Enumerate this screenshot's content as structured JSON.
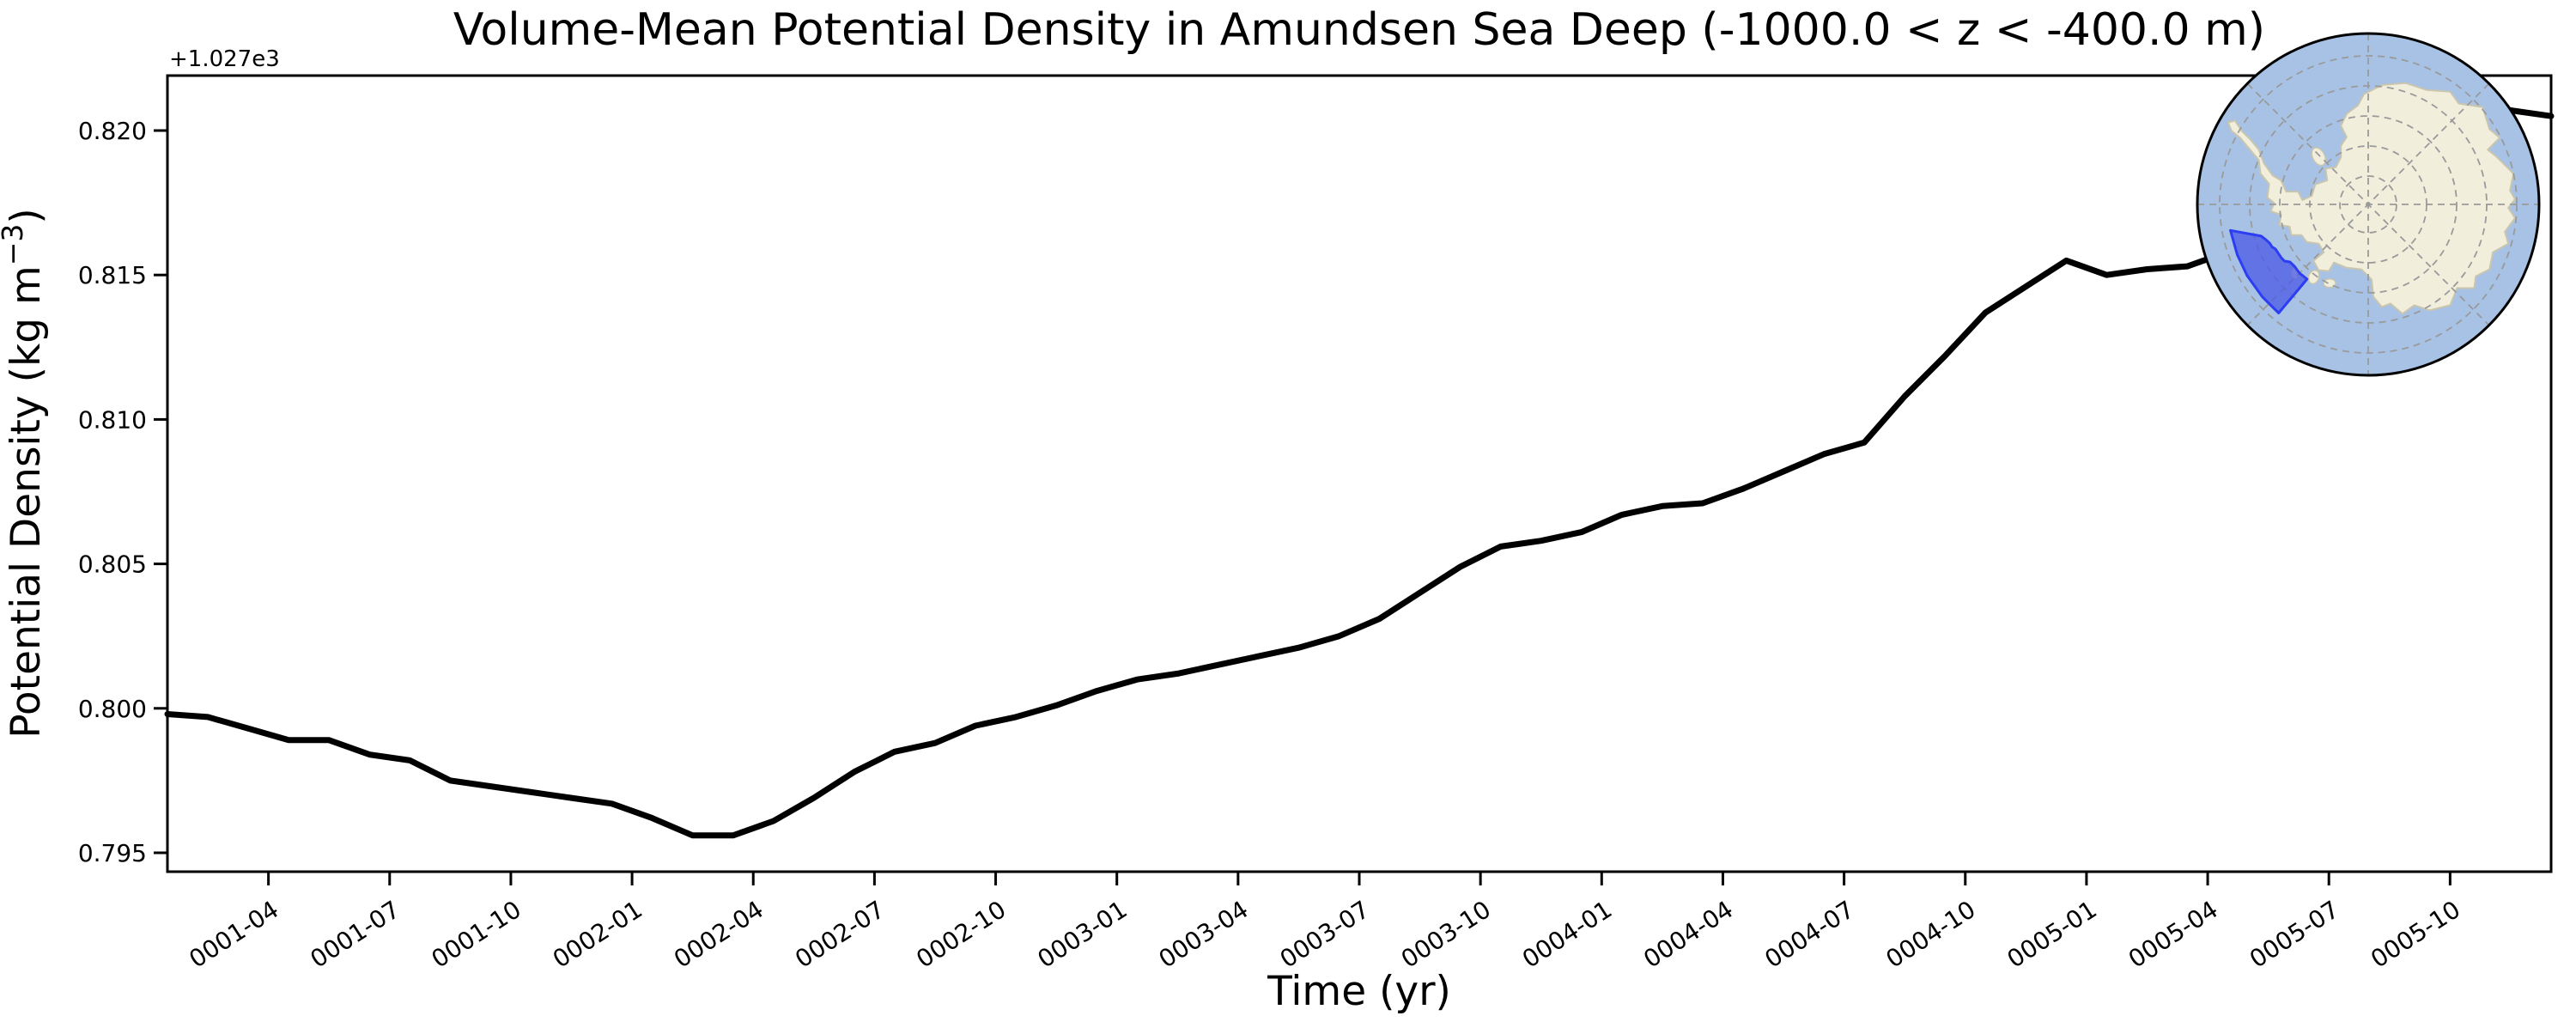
{
  "title": "Volume-Mean Potential Density in Amundsen Sea Deep (-1000.0 < z < -400.0 m)",
  "axes": {
    "xlabel": "Time (yr)",
    "ylabel_prefix": "Potential Density (kg m",
    "ylabel_superscript": "−3",
    "ylabel_close": ")",
    "y_offset_label": "+1.027e3"
  },
  "chart_data": {
    "type": "line",
    "title": "Volume-Mean Potential Density in Amundsen Sea Deep (-1000.0 < z < -400.0 m)",
    "xlabel": "Time (yr)",
    "ylabel": "Potential Density (kg m^-3)",
    "y_offset_notation": "+1.027e3",
    "y_offset_base": 1027,
    "grid": false,
    "legend": "none",
    "x_tick_labels": [
      "0001-04",
      "0001-07",
      "0001-10",
      "0002-01",
      "0002-04",
      "0002-07",
      "0002-10",
      "0003-01",
      "0003-04",
      "0003-07",
      "0003-10",
      "0004-01",
      "0004-04",
      "0004-07",
      "0004-10",
      "0005-01",
      "0005-04",
      "0005-07",
      "0005-10"
    ],
    "y_ticks": [
      0.795,
      0.8,
      0.805,
      0.81,
      0.815,
      0.82
    ],
    "ylim": [
      0.79435,
      0.8219
    ],
    "x": [
      "0001-01",
      "0001-02",
      "0001-03",
      "0001-04",
      "0001-05",
      "0001-06",
      "0001-07",
      "0001-08",
      "0001-09",
      "0001-10",
      "0001-11",
      "0001-12",
      "0002-01",
      "0002-02",
      "0002-03",
      "0002-04",
      "0002-05",
      "0002-06",
      "0002-07",
      "0002-08",
      "0002-09",
      "0002-10",
      "0002-11",
      "0002-12",
      "0003-01",
      "0003-02",
      "0003-03",
      "0003-04",
      "0003-05",
      "0003-06",
      "0003-07",
      "0003-08",
      "0003-09",
      "0003-10",
      "0003-11",
      "0003-12",
      "0004-01",
      "0004-02",
      "0004-03",
      "0004-04",
      "0004-05",
      "0004-06",
      "0004-07",
      "0004-08",
      "0004-09",
      "0004-10",
      "0004-11",
      "0004-12",
      "0005-01",
      "0005-02",
      "0005-03",
      "0005-04",
      "0005-05",
      "0005-06",
      "0005-07",
      "0005-08",
      "0005-09",
      "0005-10",
      "0005-11",
      "0005-12"
    ],
    "series": [
      {
        "name": "volume-mean potential density (offset from 1027 kg m^-3)",
        "color": "#000000",
        "line_width": 7,
        "values": [
          0.7998,
          0.7997,
          0.7993,
          0.7989,
          0.7989,
          0.7984,
          0.7982,
          0.7975,
          0.7973,
          0.7971,
          0.7969,
          0.7967,
          0.7962,
          0.7956,
          0.7956,
          0.7961,
          0.7969,
          0.7978,
          0.7985,
          0.7988,
          0.7994,
          0.7997,
          0.8001,
          0.8006,
          0.801,
          0.8012,
          0.8015,
          0.8018,
          0.8021,
          0.8025,
          0.8031,
          0.804,
          0.8049,
          0.8056,
          0.8058,
          0.8061,
          0.8067,
          0.807,
          0.8071,
          0.8076,
          0.8082,
          0.8088,
          0.8092,
          0.8108,
          0.8122,
          0.8137,
          0.8146,
          0.8155,
          0.815,
          0.8152,
          0.8153,
          0.8158,
          0.8165,
          0.8172,
          0.8179,
          0.8186,
          0.8193,
          0.82,
          0.8207,
          0.8205
        ]
      }
    ]
  },
  "inset_map": {
    "description": "south-polar map of Antarctica with Amundsen Sea sector highlighted",
    "highlighted_region": "Amundsen Sea",
    "colors": {
      "ocean": "#a7c2e5",
      "land": "#f1eedc",
      "coastline": "#c9c5ae",
      "graticule": "#9a9a9a",
      "region_fill": "#4d5ce6",
      "region_border": "#2d3df2",
      "outline": "#000000"
    }
  }
}
